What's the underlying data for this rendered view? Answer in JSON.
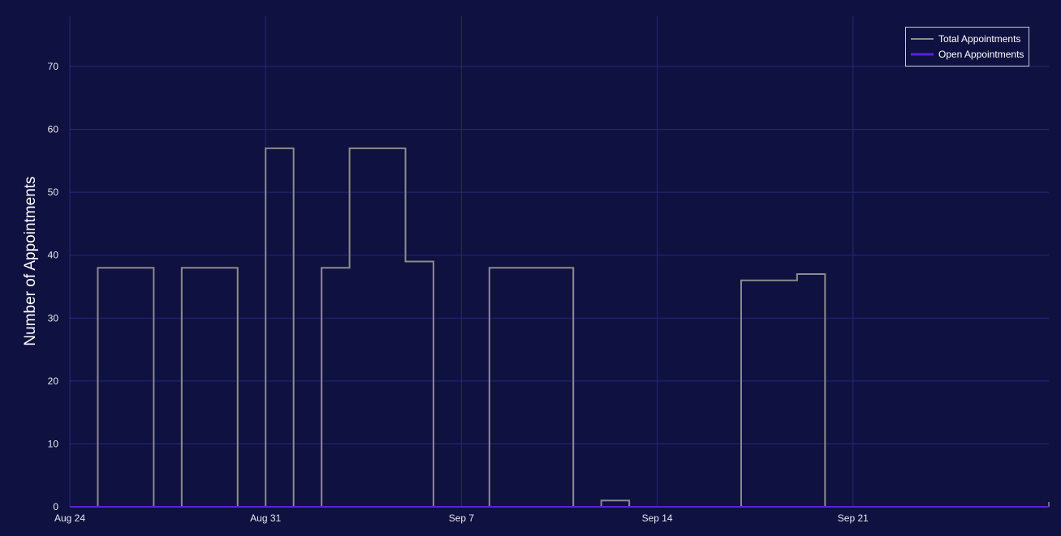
{
  "chart_data": {
    "type": "line",
    "line_shape": "step",
    "ylabel": "Number of Appointments",
    "xlabel": "",
    "ylim": [
      0,
      78
    ],
    "yticks": [
      0,
      10,
      20,
      30,
      40,
      50,
      60,
      70
    ],
    "xlim": [
      "2025-08-24",
      "2025-09-28"
    ],
    "xticks": [
      {
        "date": "2025-08-24",
        "label": "Aug 24"
      },
      {
        "date": "2025-08-31",
        "label": "Aug 31"
      },
      {
        "date": "2025-09-07",
        "label": "Sep 7"
      },
      {
        "date": "2025-09-14",
        "label": "Sep 14"
      },
      {
        "date": "2025-09-21",
        "label": "Sep 21"
      }
    ],
    "grid": true,
    "legend_position": "top-right",
    "series": [
      {
        "name": "Total Appointments",
        "color": "#8c8c8c",
        "points": [
          {
            "x": "2025-08-24",
            "y": 0
          },
          {
            "x": "2025-08-25",
            "y": 38
          },
          {
            "x": "2025-08-27",
            "y": 0
          },
          {
            "x": "2025-08-28",
            "y": 38
          },
          {
            "x": "2025-08-30",
            "y": 0
          },
          {
            "x": "2025-08-31",
            "y": 57
          },
          {
            "x": "2025-09-01",
            "y": 0
          },
          {
            "x": "2025-09-02",
            "y": 38
          },
          {
            "x": "2025-09-03",
            "y": 57
          },
          {
            "x": "2025-09-05",
            "y": 39
          },
          {
            "x": "2025-09-06",
            "y": 0
          },
          {
            "x": "2025-09-08",
            "y": 38
          },
          {
            "x": "2025-09-11",
            "y": 0
          },
          {
            "x": "2025-09-12",
            "y": 1
          },
          {
            "x": "2025-09-13",
            "y": 0
          },
          {
            "x": "2025-09-17",
            "y": 36
          },
          {
            "x": "2025-09-19",
            "y": 37
          },
          {
            "x": "2025-09-20",
            "y": 0
          },
          {
            "x": "2025-09-28",
            "y": 0
          }
        ]
      },
      {
        "name": "Open Appointments",
        "color": "#5b1fe0",
        "points": [
          {
            "x": "2025-08-24",
            "y": 0
          },
          {
            "x": "2025-09-28",
            "y": 0
          }
        ]
      }
    ]
  }
}
